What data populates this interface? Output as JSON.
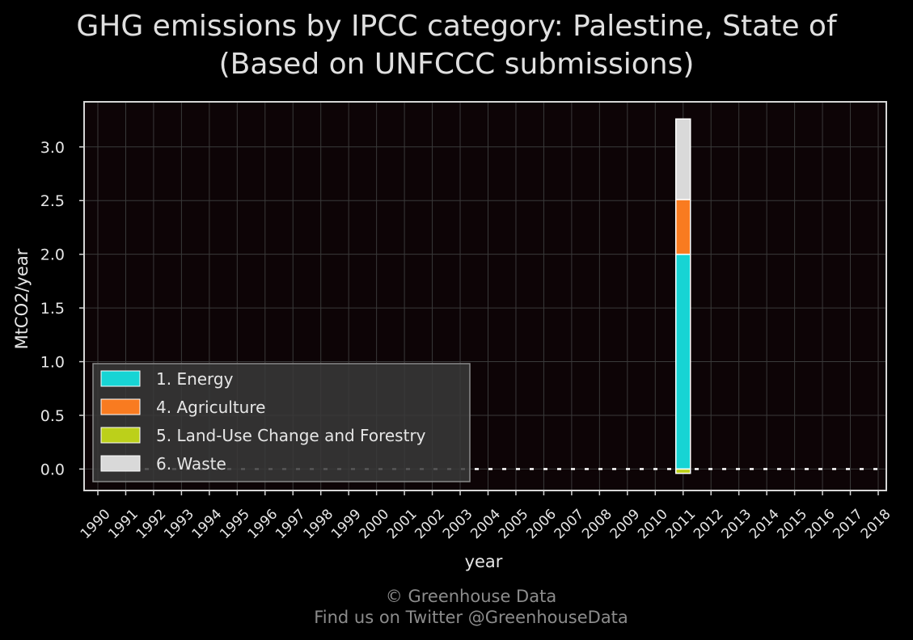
{
  "chart_data": {
    "type": "bar",
    "stacked": true,
    "title": "GHG emissions by IPCC category: Palestine, State of",
    "subtitle": "(Based on UNFCCC submissions)",
    "xlabel": "year",
    "ylabel": "MtCO2/year",
    "categories": [
      "1990",
      "1991",
      "1992",
      "1993",
      "1994",
      "1995",
      "1996",
      "1997",
      "1998",
      "1999",
      "2000",
      "2001",
      "2002",
      "2003",
      "2004",
      "2005",
      "2006",
      "2007",
      "2008",
      "2009",
      "2010",
      "2011",
      "2012",
      "2013",
      "2014",
      "2015",
      "2016",
      "2017",
      "2018"
    ],
    "yticks": [
      "0.0",
      "0.5",
      "1.0",
      "1.5",
      "2.0",
      "2.5",
      "3.0"
    ],
    "ylim": [
      -0.2,
      3.42
    ],
    "grid": true,
    "legend_position": "lower-left",
    "series": [
      {
        "name": "1. Energy",
        "color": "#17d4d4",
        "values": [
          0,
          0,
          0,
          0,
          0,
          0,
          0,
          0,
          0,
          0,
          0,
          0,
          0,
          0,
          0,
          0,
          0,
          0,
          0,
          0,
          0,
          2.0,
          0,
          0,
          0,
          0,
          0,
          0,
          0
        ]
      },
      {
        "name": "4. Agriculture",
        "color": "#f97b20",
        "values": [
          0,
          0,
          0,
          0,
          0,
          0,
          0,
          0,
          0,
          0,
          0,
          0,
          0,
          0,
          0,
          0,
          0,
          0,
          0,
          0,
          0,
          0.51,
          0,
          0,
          0,
          0,
          0,
          0,
          0
        ]
      },
      {
        "name": "5. Land-Use Change and Forestry",
        "color": "#bcd01a",
        "values": [
          0,
          0,
          0,
          0,
          0,
          0,
          0,
          0,
          0,
          0,
          0,
          0,
          0,
          0,
          0,
          0,
          0,
          0,
          0,
          0,
          0,
          -0.04,
          0,
          0,
          0,
          0,
          0,
          0,
          0
        ]
      },
      {
        "name": "6. Waste",
        "color": "#d9d9d9",
        "values": [
          0,
          0,
          0,
          0,
          0,
          0,
          0,
          0,
          0,
          0,
          0,
          0,
          0,
          0,
          0,
          0,
          0,
          0,
          0,
          0,
          0,
          0.75,
          0,
          0,
          0,
          0,
          0,
          0,
          0
        ]
      }
    ]
  },
  "footer": {
    "line1": "© Greenhouse Data",
    "line2": "Find us on Twitter @GreenhouseData"
  }
}
